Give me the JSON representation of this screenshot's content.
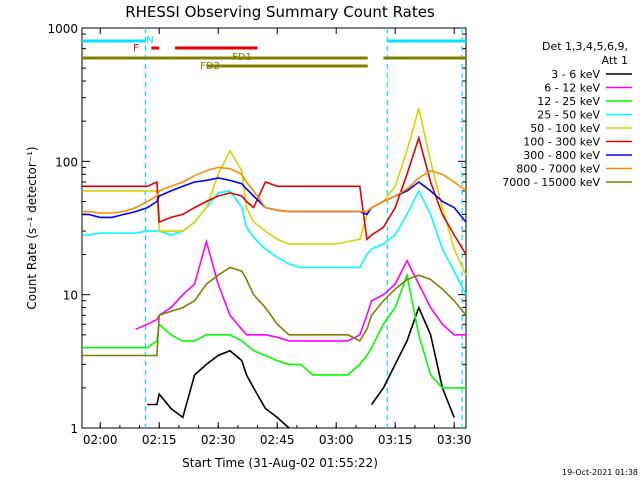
{
  "chart_data": {
    "type": "line",
    "title": "RHESSI Observing Summary Count Rates",
    "xlabel": "Start Time (31-Aug-02 01:55:22)",
    "ylabel": "Count Rate (s⁻¹ detector⁻¹)",
    "yscale": "log",
    "ylim": [
      1,
      1000
    ],
    "xlim": [
      "01:55:22",
      "03:33:00"
    ],
    "x_ticks": [
      "02:00",
      "02:15",
      "02:30",
      "02:45",
      "03:00",
      "03:15",
      "03:30"
    ],
    "y_ticks": [
      "1",
      "10",
      "100",
      "1000"
    ],
    "timestamp": "19-Oct-2021 01:38",
    "legend": {
      "position": "right",
      "header": [
        "Det 1,3,4,5,6,9,",
        "Att 1"
      ]
    },
    "flags": [
      {
        "label": "N",
        "color": "#00e5ff",
        "segments": [
          [
            "01:55:22",
            "02:11:30"
          ],
          [
            "03:13:00",
            "03:33:00"
          ]
        ]
      },
      {
        "label": "F",
        "color": "#e00000",
        "segments": [
          [
            "02:13:00",
            "02:15:00"
          ],
          [
            "02:19:00",
            "02:40:00"
          ]
        ]
      },
      {
        "label": "FD1",
        "color": "#808000",
        "segments": [
          [
            "01:55:22",
            "03:08:00"
          ],
          [
            "03:12:00",
            "03:33:00"
          ]
        ]
      },
      {
        "label": "FD2",
        "color": "#808000",
        "segments": [
          [
            "02:27:00",
            "03:08:00"
          ]
        ]
      }
    ],
    "night_lines": [
      "02:11:30",
      "03:13:00",
      "03:32:00"
    ],
    "x_hours": [
      1.923,
      1.95,
      2.0,
      2.05,
      2.1,
      2.15,
      2.2,
      2.24,
      2.25,
      2.3,
      2.35,
      2.4,
      2.45,
      2.5,
      2.55,
      2.6,
      2.62,
      2.65,
      2.7,
      2.75,
      2.8,
      2.85,
      2.9,
      2.95,
      3.0,
      3.05,
      3.1,
      3.13,
      3.15,
      3.2,
      3.25,
      3.3,
      3.35,
      3.4,
      3.45,
      3.5,
      3.55
    ],
    "series": [
      {
        "name": "3 - 6 keV",
        "color": "#000000",
        "values": [
          null,
          null,
          null,
          null,
          null,
          null,
          1.5,
          1.5,
          1.8,
          1.4,
          1.2,
          2.5,
          3.0,
          3.5,
          3.8,
          3.2,
          2.5,
          2.0,
          1.4,
          1.2,
          1.0,
          null,
          null,
          null,
          null,
          null,
          null,
          null,
          1.5,
          2.0,
          3.0,
          4.5,
          8.0,
          5.0,
          2.0,
          1.2,
          null
        ]
      },
      {
        "name": "6 - 12 keV",
        "color": "#ff00ff",
        "values": [
          null,
          null,
          null,
          null,
          null,
          5.5,
          6.0,
          6.5,
          7.0,
          8.0,
          10.0,
          12.0,
          25.0,
          12.0,
          7.0,
          5.5,
          5.0,
          5.0,
          5.0,
          4.8,
          4.5,
          4.5,
          4.5,
          4.5,
          4.5,
          4.5,
          5.0,
          7.0,
          9.0,
          10.0,
          12.0,
          18.0,
          12.0,
          8.0,
          6.0,
          5.0,
          5.0
        ]
      },
      {
        "name": "12 - 25 keV",
        "color": "#00ff00",
        "values": [
          4.0,
          4.0,
          4.0,
          4.0,
          4.0,
          4.0,
          4.0,
          4.5,
          6.0,
          5.0,
          4.5,
          4.5,
          5.0,
          5.0,
          5.0,
          4.5,
          4.2,
          3.8,
          3.5,
          3.2,
          3.0,
          3.0,
          2.5,
          2.5,
          2.5,
          2.5,
          3.0,
          3.5,
          4.0,
          6.0,
          8.0,
          14.0,
          5.0,
          2.5,
          2.0,
          2.0,
          2.0
        ]
      },
      {
        "name": "25 - 50 keV",
        "color": "#00ffff",
        "values": [
          28.0,
          28.0,
          29.0,
          29.0,
          29.0,
          29.0,
          30.0,
          30.0,
          30.0,
          28.0,
          30.0,
          35.0,
          45.0,
          58.0,
          60.0,
          45.0,
          32.0,
          27.0,
          22.0,
          19.0,
          17.0,
          16.0,
          16.0,
          16.0,
          16.0,
          16.0,
          16.0,
          20.0,
          22.0,
          24.0,
          28.0,
          40.0,
          60.0,
          40.0,
          22.0,
          15.0,
          10.0
        ]
      },
      {
        "name": "50 - 100 keV",
        "color": "#d4d400",
        "values": [
          60.0,
          60.0,
          60.0,
          60.0,
          60.0,
          60.0,
          60.0,
          60.0,
          30.0,
          30.0,
          30.0,
          35.0,
          45.0,
          80.0,
          120.0,
          85.0,
          45.0,
          35.0,
          30.0,
          26.0,
          24.0,
          24.0,
          24.0,
          24.0,
          24.0,
          25.0,
          26.0,
          40.0,
          45.0,
          50.0,
          65.0,
          120.0,
          250.0,
          100.0,
          45.0,
          22.0,
          14.0
        ]
      },
      {
        "name": "100 - 300 keV",
        "color": "#e00000",
        "values": [
          65.0,
          65.0,
          65.0,
          65.0,
          65.0,
          65.0,
          65.0,
          70.0,
          35.0,
          38.0,
          40.0,
          45.0,
          50.0,
          55.0,
          58.0,
          55.0,
          50.0,
          45.0,
          70.0,
          65.0,
          65.0,
          65.0,
          65.0,
          65.0,
          65.0,
          65.0,
          65.0,
          26.0,
          28.0,
          32.0,
          45.0,
          80.0,
          150.0,
          70.0,
          40.0,
          28.0,
          20.0
        ]
      },
      {
        "name": "300 - 800 keV",
        "color": "#0000ff",
        "values": [
          40.0,
          40.0,
          38.0,
          38.0,
          40.0,
          42.0,
          45.0,
          50.0,
          55.0,
          60.0,
          65.0,
          70.0,
          72.0,
          75.0,
          72.0,
          68.0,
          62.0,
          55.0,
          45.0,
          43.0,
          42.0,
          42.0,
          42.0,
          42.0,
          42.0,
          42.0,
          42.0,
          40.0,
          45.0,
          50.0,
          55.0,
          60.0,
          70.0,
          60.0,
          50.0,
          45.0,
          35.0
        ]
      },
      {
        "name": "800 - 7000 keV",
        "color": "#ff8c00",
        "values": [
          42.0,
          42.0,
          41.0,
          41.0,
          42.0,
          45.0,
          50.0,
          55.0,
          60.0,
          65.0,
          70.0,
          78.0,
          85.0,
          90.0,
          88.0,
          80.0,
          70.0,
          60.0,
          45.0,
          43.0,
          42.0,
          42.0,
          42.0,
          42.0,
          42.0,
          42.0,
          42.0,
          42.0,
          45.0,
          50.0,
          55.0,
          62.0,
          75.0,
          85.0,
          80.0,
          70.0,
          60.0
        ]
      },
      {
        "name": "7000 - 15000 keV",
        "color": "#808000",
        "values": [
          3.5,
          3.5,
          3.5,
          3.5,
          3.5,
          3.5,
          3.5,
          3.5,
          7.0,
          7.5,
          8.0,
          9.0,
          12.0,
          14.0,
          16.0,
          15.0,
          13.0,
          10.0,
          8.0,
          6.0,
          5.0,
          5.0,
          5.0,
          5.0,
          5.0,
          5.0,
          4.5,
          5.5,
          7.0,
          9.0,
          11.0,
          13.0,
          14.0,
          13.0,
          11.0,
          9.0,
          7.0
        ]
      }
    ]
  }
}
